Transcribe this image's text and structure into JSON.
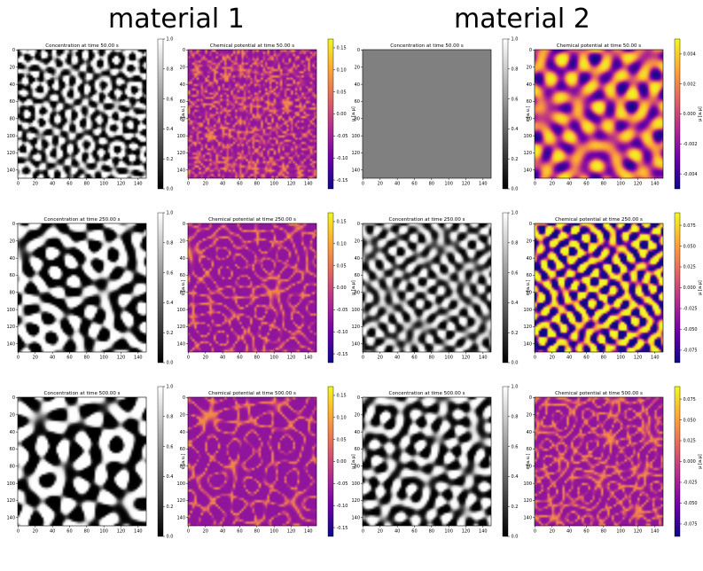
{
  "headings": [
    "material 1",
    "material 2"
  ],
  "colormaps": {
    "gray": [
      "#000000",
      "#ffffff"
    ],
    "plasma": [
      "#0d0887",
      "#6a00a8",
      "#b12a90",
      "#e16462",
      "#fca636",
      "#f0f921"
    ]
  },
  "chart_data": [
    {
      "type": "heatmap",
      "title": "Concentration at time 50.00 s",
      "material": "material 1",
      "cmap": "gray",
      "x_ticks": [
        "0",
        "20",
        "40",
        "60",
        "80",
        "100",
        "120",
        "140"
      ],
      "y_ticks": [
        "0",
        "20",
        "40",
        "60",
        "80",
        "100",
        "120",
        "140"
      ],
      "colorbar_label": "c [a.u.]",
      "colorbar_ticks": [
        "0.0",
        "0.2",
        "0.4",
        "0.6",
        "0.8",
        "1.0"
      ],
      "colorbar_range": [
        0,
        1
      ],
      "grid_size": 150,
      "pattern": {
        "scale": 12,
        "sharp": 3,
        "seed": 1,
        "mean": 0
      }
    },
    {
      "type": "heatmap",
      "title": "Chemical potential at time 50.00 s",
      "material": "material 1",
      "cmap": "plasma",
      "x_ticks": [
        "0",
        "20",
        "40",
        "60",
        "80",
        "100",
        "120",
        "140"
      ],
      "y_ticks": [
        "0",
        "20",
        "40",
        "60",
        "80",
        "100",
        "120",
        "140"
      ],
      "colorbar_label": "μ [a.μ]",
      "colorbar_ticks": [
        "0.15",
        "0.10",
        "0.05",
        "0.00",
        "-0.05",
        "-0.10",
        "-0.15"
      ],
      "colorbar_range": [
        -0.17,
        0.17
      ],
      "grid_size": 150,
      "pattern": {
        "scale": 12,
        "sharp": 3,
        "seed": 1,
        "mean": 0,
        "ring": true
      }
    },
    {
      "type": "heatmap",
      "title": "Concentration at time 50.00 s",
      "material": "material 2",
      "cmap": "gray",
      "x_ticks": [
        "0",
        "20",
        "40",
        "60",
        "80",
        "100",
        "120",
        "140"
      ],
      "y_ticks": [
        "0",
        "20",
        "40",
        "60",
        "80",
        "100",
        "120",
        "140"
      ],
      "colorbar_label": "c [a.u.]",
      "colorbar_ticks": [
        "0.0",
        "0.2",
        "0.4",
        "0.6",
        "0.8",
        "1.0"
      ],
      "colorbar_range": [
        0,
        1
      ],
      "grid_size": 150,
      "pattern": {
        "uniform": 0.5
      }
    },
    {
      "type": "heatmap",
      "title": "Chemical potential at time 50.00 s",
      "material": "material 2",
      "cmap": "plasma",
      "x_ticks": [
        "0",
        "20",
        "40",
        "60",
        "80",
        "100",
        "120",
        "140"
      ],
      "y_ticks": [
        "0",
        "20",
        "40",
        "60",
        "80",
        "100",
        "120",
        "140"
      ],
      "colorbar_label": "μ [a.μ]",
      "colorbar_ticks": [
        "0.004",
        "0.002",
        "0.000",
        "-0.002",
        "-0.004"
      ],
      "colorbar_range": [
        -0.005,
        0.005
      ],
      "grid_size": 150,
      "pattern": {
        "scale": 22,
        "sharp": 1,
        "seed": 7,
        "mean": 0.1
      }
    },
    {
      "type": "heatmap",
      "title": "Concentration at time 250.00 s",
      "material": "material 1",
      "cmap": "gray",
      "x_ticks": [
        "0",
        "20",
        "40",
        "60",
        "80",
        "100",
        "120",
        "140"
      ],
      "y_ticks": [
        "0",
        "20",
        "40",
        "60",
        "80",
        "100",
        "120",
        "140"
      ],
      "colorbar_label": "c [a.u.]",
      "colorbar_ticks": [
        "0.0",
        "0.2",
        "0.4",
        "0.6",
        "0.8",
        "1.0"
      ],
      "colorbar_range": [
        0,
        1
      ],
      "grid_size": 150,
      "pattern": {
        "scale": 20,
        "sharp": 4,
        "seed": 3,
        "mean": 0
      }
    },
    {
      "type": "heatmap",
      "title": "Chemical potential at time 250.00 s",
      "material": "material 1",
      "cmap": "plasma",
      "x_ticks": [
        "0",
        "20",
        "40",
        "60",
        "80",
        "100",
        "120",
        "140"
      ],
      "y_ticks": [
        "0",
        "20",
        "40",
        "60",
        "80",
        "100",
        "120",
        "140"
      ],
      "colorbar_label": "μ [a.μ]",
      "colorbar_ticks": [
        "0.15",
        "0.10",
        "0.05",
        "0.00",
        "-0.05",
        "-0.10",
        "-0.15"
      ],
      "colorbar_range": [
        -0.17,
        0.17
      ],
      "grid_size": 150,
      "pattern": {
        "scale": 20,
        "sharp": 4,
        "seed": 3,
        "mean": 0,
        "ring": true
      }
    },
    {
      "type": "heatmap",
      "title": "Concentration at time 250.00 s",
      "material": "material 2",
      "cmap": "gray",
      "x_ticks": [
        "0",
        "20",
        "40",
        "60",
        "80",
        "100",
        "120",
        "140"
      ],
      "y_ticks": [
        "0",
        "20",
        "40",
        "60",
        "80",
        "100",
        "120",
        "140"
      ],
      "colorbar_label": "c [a.u.]",
      "colorbar_ticks": [
        "0.0",
        "0.2",
        "0.4",
        "0.6",
        "0.8",
        "1.0"
      ],
      "colorbar_range": [
        0,
        1
      ],
      "grid_size": 150,
      "pattern": {
        "scale": 14,
        "sharp": 1.6,
        "seed": 5,
        "mean": 0
      }
    },
    {
      "type": "heatmap",
      "title": "Chemical potential at time 250.00 s",
      "material": "material 2",
      "cmap": "plasma",
      "x_ticks": [
        "0",
        "20",
        "40",
        "60",
        "80",
        "100",
        "120",
        "140"
      ],
      "y_ticks": [
        "0",
        "20",
        "40",
        "60",
        "80",
        "100",
        "120",
        "140"
      ],
      "colorbar_label": "μ [a.μ]",
      "colorbar_ticks": [
        "0.075",
        "0.050",
        "0.025",
        "0.000",
        "-0.025",
        "-0.050",
        "-0.075"
      ],
      "colorbar_range": [
        -0.09,
        0.09
      ],
      "grid_size": 150,
      "pattern": {
        "scale": 14,
        "sharp": 3,
        "seed": 5,
        "mean": 0
      }
    },
    {
      "type": "heatmap",
      "title": "Concentration at time 500.00 s",
      "material": "material 1",
      "cmap": "gray",
      "x_ticks": [
        "0",
        "20",
        "40",
        "60",
        "80",
        "100",
        "120",
        "140"
      ],
      "y_ticks": [
        "0",
        "20",
        "40",
        "60",
        "80",
        "100",
        "120",
        "140"
      ],
      "colorbar_label": "c [a.u.]",
      "colorbar_ticks": [
        "0.0",
        "0.2",
        "0.4",
        "0.6",
        "0.8",
        "1.0"
      ],
      "colorbar_range": [
        0,
        1
      ],
      "grid_size": 150,
      "pattern": {
        "scale": 24,
        "sharp": 5,
        "seed": 9,
        "mean": 0
      }
    },
    {
      "type": "heatmap",
      "title": "Chemical potential at time 500.00 s",
      "material": "material 1",
      "cmap": "plasma",
      "x_ticks": [
        "0",
        "20",
        "40",
        "60",
        "80",
        "100",
        "120",
        "140"
      ],
      "y_ticks": [
        "0",
        "20",
        "40",
        "60",
        "80",
        "100",
        "120",
        "140"
      ],
      "colorbar_label": "μ [a.μ]",
      "colorbar_ticks": [
        "0.15",
        "0.10",
        "0.05",
        "0.00",
        "-0.05",
        "-0.10",
        "-0.15"
      ],
      "colorbar_range": [
        -0.17,
        0.17
      ],
      "grid_size": 150,
      "pattern": {
        "scale": 24,
        "sharp": 5,
        "seed": 9,
        "mean": 0,
        "ring": true
      }
    },
    {
      "type": "heatmap",
      "title": "Concentration at time 500.00 s",
      "material": "material 2",
      "cmap": "gray",
      "x_ticks": [
        "0",
        "20",
        "40",
        "60",
        "80",
        "100",
        "120",
        "140"
      ],
      "y_ticks": [
        "0",
        "20",
        "40",
        "60",
        "80",
        "100",
        "120",
        "140"
      ],
      "colorbar_label": "c [a.u.]",
      "colorbar_ticks": [
        "0.0",
        "0.2",
        "0.4",
        "0.6",
        "0.8",
        "1.0"
      ],
      "colorbar_range": [
        0,
        1
      ],
      "grid_size": 150,
      "pattern": {
        "scale": 17,
        "sharp": 2.5,
        "seed": 11,
        "mean": 0
      }
    },
    {
      "type": "heatmap",
      "title": "Chemical potential at time 500.00 s",
      "material": "material 2",
      "cmap": "plasma",
      "x_ticks": [
        "0",
        "20",
        "40",
        "60",
        "80",
        "100",
        "120",
        "140"
      ],
      "y_ticks": [
        "0",
        "20",
        "40",
        "60",
        "80",
        "100",
        "120",
        "140"
      ],
      "colorbar_label": "μ [a.μ]",
      "colorbar_ticks": [
        "0.075",
        "0.050",
        "0.025",
        "0.000",
        "-0.025",
        "-0.050",
        "-0.075"
      ],
      "colorbar_range": [
        -0.09,
        0.09
      ],
      "grid_size": 150,
      "pattern": {
        "scale": 17,
        "sharp": 3,
        "seed": 11,
        "mean": 0,
        "ring": true
      }
    }
  ]
}
